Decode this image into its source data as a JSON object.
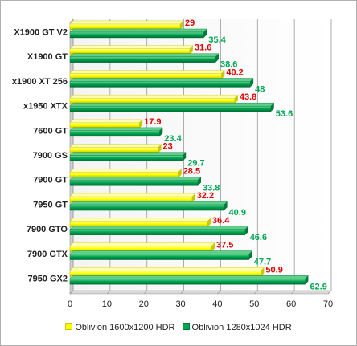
{
  "chart_data": {
    "type": "bar",
    "orientation": "horizontal",
    "categories": [
      "X1900 GT V2",
      "X1900 GT",
      "x1900 XT 256",
      "x1950 XTX",
      "7600 GT",
      "7900 GS",
      "7900 GT",
      "7950 GT",
      "7900 GTO",
      "7900 GTX",
      "7950 GX2"
    ],
    "series": [
      {
        "name": "Oblivion 1600x1200 HDR",
        "color": "#ffff00",
        "label_color": "#e00000",
        "values": [
          29,
          31.6,
          40.2,
          43.8,
          17.9,
          23,
          28.5,
          32.2,
          36.4,
          37.5,
          50.9
        ]
      },
      {
        "name": "Oblivion 1280x1024 HDR",
        "color": "#00a651",
        "label_color": "#00a651",
        "values": [
          35.4,
          38.6,
          48,
          53.6,
          23.4,
          29.7,
          33.8,
          40.9,
          46.6,
          47.7,
          62.9
        ]
      }
    ],
    "xlim": [
      0,
      70
    ],
    "xticks": [
      "0",
      "10",
      "20",
      "30",
      "40",
      "50",
      "60",
      "70"
    ],
    "grid": true,
    "legend_position": "bottom"
  }
}
